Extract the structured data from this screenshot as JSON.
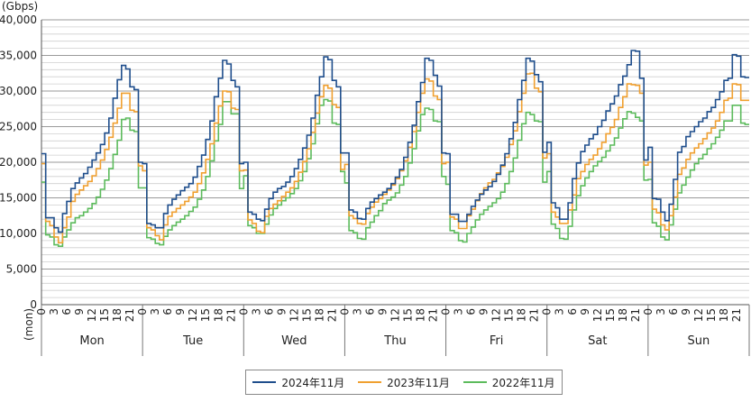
{
  "chart_data": {
    "type": "line",
    "y_unit_label": "(Gbps)",
    "ylim": [
      0,
      40000
    ],
    "y_ticks": [
      "40,000",
      "35,000",
      "30,000",
      "25,000",
      "20,000",
      "15,000",
      "10,000",
      "5,000",
      "0"
    ],
    "y_tick_values": [
      40000,
      35000,
      30000,
      25000,
      20000,
      15000,
      10000,
      5000,
      0
    ],
    "hour_ticks": [
      "0",
      "3",
      "6",
      "9",
      "12",
      "15",
      "18",
      "21"
    ],
    "hour_tick_values": [
      0,
      3,
      6,
      9,
      12,
      15,
      18,
      21
    ],
    "x_prefix_label": "(mon)",
    "categories": [
      "Mon",
      "Tue",
      "Wed",
      "Thu",
      "Fri",
      "Sat",
      "Sun"
    ],
    "grid": true,
    "legend_position": "bottom",
    "series": [
      {
        "name": "2024年11月",
        "color": "#1f4e8c",
        "values": [
          [
            21200,
            12200,
            12200,
            10800,
            10200,
            12800,
            14500,
            16300,
            17100,
            17800,
            18400,
            19300,
            20300,
            21300,
            22500,
            24100,
            26200,
            29000,
            31600,
            33600,
            33100,
            30600,
            30200,
            20000
          ],
          [
            19800,
            11400,
            11200,
            10800,
            10800,
            12800,
            14000,
            14800,
            15400,
            16000,
            16500,
            17000,
            17900,
            19400,
            21000,
            23200,
            25800,
            29200,
            31800,
            34300,
            33800,
            31500,
            30600,
            19800
          ],
          [
            20000,
            13000,
            12700,
            12000,
            11800,
            13400,
            14900,
            15800,
            16300,
            16600,
            17200,
            18000,
            19100,
            20400,
            22000,
            23800,
            26200,
            29400,
            32000,
            34800,
            34400,
            31500,
            30600,
            21300
          ],
          [
            21300,
            13300,
            13000,
            12100,
            12000,
            13500,
            14400,
            14900,
            15400,
            15800,
            16300,
            17000,
            17900,
            19000,
            20700,
            22800,
            25200,
            28500,
            31200,
            34600,
            34300,
            32200,
            30700,
            21300
          ],
          [
            21200,
            12700,
            12700,
            11700,
            11700,
            12700,
            13800,
            14700,
            15500,
            16100,
            16600,
            17300,
            18300,
            19600,
            21200,
            23300,
            25600,
            28800,
            31500,
            34600,
            34200,
            32300,
            31300,
            21400
          ],
          [
            22800,
            14300,
            13600,
            12000,
            12000,
            14300,
            17700,
            19900,
            21500,
            22400,
            23300,
            23900,
            25000,
            25900,
            27200,
            28200,
            29300,
            30900,
            32100,
            33700,
            35700,
            35600,
            31800,
            20300
          ],
          [
            22100,
            14900,
            14800,
            13000,
            11800,
            14100,
            17600,
            21400,
            22200,
            23600,
            24300,
            25000,
            25700,
            26200,
            27100,
            27700,
            28800,
            29900,
            31500,
            31800,
            35100,
            34900,
            32000,
            31900
          ]
        ]
      },
      {
        "name": "2023年11月",
        "color": "#f0a030",
        "values": [
          [
            19800,
            11700,
            11100,
            9500,
            8700,
            10800,
            12300,
            14500,
            15500,
            16100,
            16700,
            17300,
            18100,
            19100,
            20300,
            21800,
            23500,
            25500,
            27600,
            29700,
            29700,
            27300,
            27100,
            19500
          ],
          [
            18800,
            10800,
            10500,
            9700,
            9100,
            11200,
            12400,
            13000,
            13500,
            14000,
            14500,
            15100,
            15800,
            17000,
            18500,
            20400,
            22600,
            25500,
            27900,
            30000,
            29900,
            27600,
            27400,
            18800
          ],
          [
            18900,
            11900,
            11400,
            10300,
            10100,
            12400,
            13500,
            14100,
            14600,
            15200,
            15800,
            16400,
            17300,
            18600,
            20100,
            21900,
            24200,
            26900,
            29200,
            30800,
            30400,
            28100,
            27700,
            19000
          ],
          [
            19700,
            12500,
            12100,
            11400,
            11300,
            12800,
            13700,
            14400,
            14900,
            15500,
            16100,
            16800,
            17700,
            18800,
            20200,
            22100,
            24300,
            27000,
            29700,
            31700,
            31400,
            29300,
            28800,
            19800
          ],
          [
            20000,
            12300,
            12000,
            10700,
            10700,
            12500,
            13400,
            14600,
            15600,
            16400,
            17100,
            17600,
            18500,
            19400,
            20700,
            22500,
            24400,
            27100,
            29700,
            32400,
            32500,
            30400,
            29900,
            20600
          ],
          [
            21200,
            13000,
            12300,
            11400,
            11400,
            13300,
            15400,
            17700,
            18700,
            19700,
            20400,
            21000,
            21900,
            22800,
            24000,
            24900,
            26000,
            27700,
            29200,
            31000,
            30900,
            30800,
            29700,
            19600
          ],
          [
            20000,
            13400,
            12900,
            11200,
            10500,
            12500,
            15100,
            18300,
            19200,
            20400,
            21300,
            22000,
            22600,
            23300,
            24100,
            24800,
            25800,
            27000,
            28700,
            29000,
            31000,
            30900,
            28700,
            28700
          ]
        ]
      },
      {
        "name": "2022年11月",
        "color": "#5cbb5c",
        "values": [
          [
            17200,
            9800,
            9500,
            8400,
            8200,
            9500,
            10500,
            11500,
            12200,
            12500,
            13000,
            13500,
            14200,
            15100,
            16200,
            17500,
            19100,
            21100,
            23100,
            26000,
            26200,
            24500,
            24300,
            16400
          ],
          [
            16400,
            9400,
            9200,
            8600,
            8400,
            9600,
            10500,
            11100,
            11600,
            12000,
            12500,
            13100,
            13700,
            14800,
            16100,
            18000,
            20200,
            23000,
            25300,
            28500,
            28500,
            26800,
            26800,
            16300
          ],
          [
            18100,
            11100,
            10800,
            10000,
            10000,
            11300,
            12600,
            13500,
            14000,
            14600,
            15000,
            15600,
            16300,
            17400,
            18700,
            20500,
            22600,
            25400,
            28000,
            28800,
            28600,
            25500,
            25300,
            18700
          ],
          [
            17100,
            10400,
            10100,
            9300,
            9200,
            10800,
            11600,
            12500,
            13200,
            14200,
            14700,
            15100,
            15700,
            16800,
            18000,
            19900,
            21900,
            24400,
            26700,
            27600,
            27400,
            25800,
            25700,
            18000
          ],
          [
            16900,
            10400,
            10100,
            9000,
            8800,
            10000,
            10900,
            11900,
            12700,
            13300,
            13800,
            14300,
            14900,
            15800,
            17000,
            18700,
            20600,
            23100,
            25400,
            27000,
            26700,
            25800,
            25700,
            17200
          ],
          [
            18700,
            11300,
            10700,
            9300,
            9200,
            11000,
            13300,
            15300,
            16700,
            17800,
            18700,
            19500,
            20100,
            20700,
            21600,
            22400,
            23400,
            24800,
            26100,
            27100,
            26900,
            26300,
            25800,
            17500
          ],
          [
            17600,
            11500,
            11000,
            9500,
            9100,
            11200,
            13400,
            15700,
            16800,
            17900,
            18900,
            19800,
            20500,
            21100,
            21900,
            22600,
            23500,
            24500,
            25800,
            25800,
            28000,
            28000,
            25500,
            25300
          ]
        ]
      }
    ]
  }
}
